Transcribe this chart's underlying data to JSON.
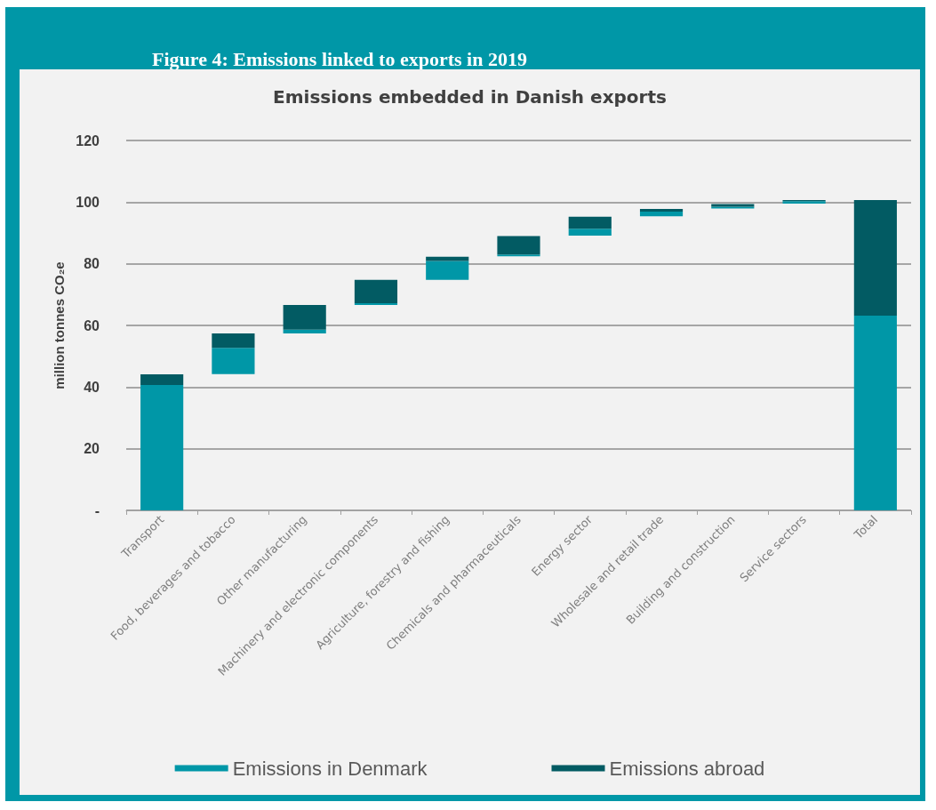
{
  "chart_data": {
    "type": "bar",
    "title": "Figure 4: Emissions linked to exports in 2019",
    "subtitle": "Emissions embedded in Danish exports",
    "ylabel": "million tonnes CO₂e",
    "categories": [
      "Transport",
      "Food, beverages and tobacco",
      "Other manufacturing",
      "Machinery and electronic components",
      "Agriculture, forestry and fishing",
      "Chemicals and pharmaceuticals",
      "Energy sector",
      "Wholesale and retail trade",
      "Building and construction",
      "Service sectors",
      "Total"
    ],
    "stacked": true,
    "series": [
      {
        "name": "Emissions in Denmark",
        "color": "#0097a7",
        "base": [
          0,
          44.2,
          57.4,
          66.6,
          74.8,
          82.4,
          89.1,
          95.4,
          97.9,
          99.5,
          0
        ],
        "values": [
          40.7,
          8.5,
          1.2,
          0.6,
          6.1,
          0.6,
          2.3,
          1.5,
          0.6,
          0.8,
          63.2
        ]
      },
      {
        "name": "Emissions abroad",
        "color": "#025b63",
        "values": [
          3.4,
          4.7,
          8.0,
          7.6,
          1.4,
          6.0,
          3.9,
          0.9,
          0.9,
          0.4,
          37.5
        ]
      }
    ],
    "ylim": [
      0,
      120
    ],
    "yticks": [
      {
        "value": 0,
        "label": "-"
      },
      20,
      40,
      60,
      80,
      100,
      120
    ],
    "grid": "y",
    "legend": "bottom"
  }
}
